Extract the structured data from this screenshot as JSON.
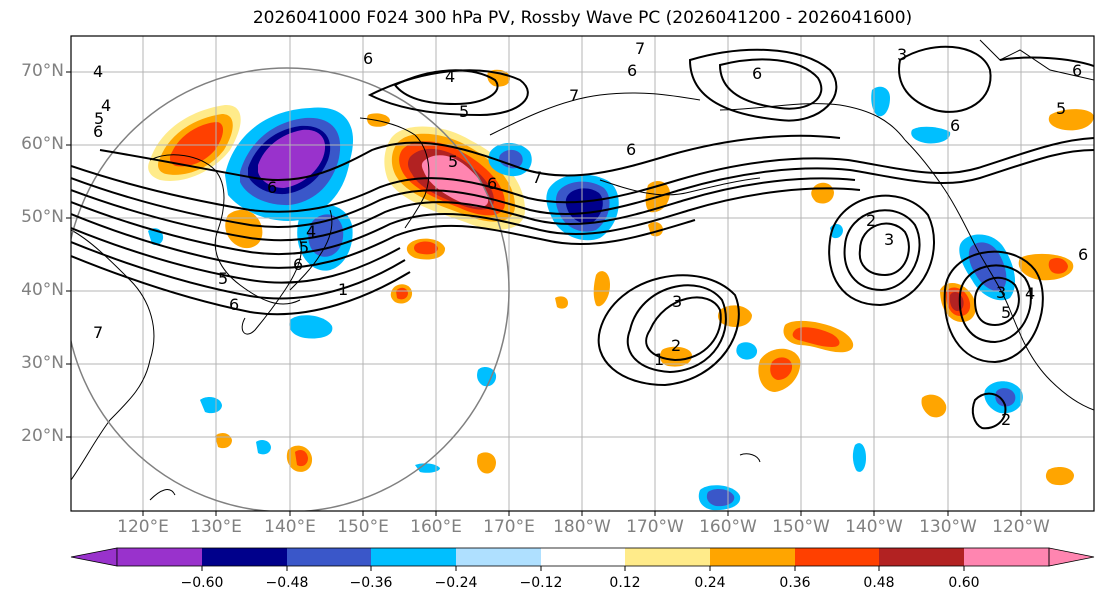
{
  "title": "2026041000 F024 300 hPa PV, Rossby Wave PC (2026041200 - 2026041600)",
  "lat_labels": [
    "70°N",
    "60°N",
    "50°N",
    "40°N",
    "30°N",
    "20°N"
  ],
  "lon_labels": [
    "120°E",
    "130°E",
    "140°E",
    "150°E",
    "160°E",
    "170°E",
    "180°W",
    "170°W",
    "160°W",
    "150°W",
    "140°W",
    "130°W",
    "120°W"
  ],
  "contour_labels": [
    "4",
    "6",
    "7",
    "6",
    "6",
    "4",
    "5",
    "7",
    "6",
    "6",
    "3",
    "6",
    "6",
    "5",
    "5",
    "4",
    "5",
    "6",
    "7",
    "7",
    "6",
    "5",
    "4",
    "3",
    "2",
    "1",
    "3",
    "2",
    "1",
    "6",
    "6",
    "5",
    "4",
    "6",
    "3",
    "5",
    "2"
  ],
  "colorbar": {
    "ticks": [
      "−0.60",
      "−0.48",
      "−0.36",
      "−0.24",
      "−0.12",
      "0.12",
      "0.24",
      "0.36",
      "0.48",
      "0.60"
    ],
    "colors": [
      "#9932cc",
      "#00008b",
      "#3a57c9",
      "#00bfff",
      "#afe0ff",
      "#ffffff",
      "#ffeb8a",
      "#ffa500",
      "#ff4000",
      "#b22222",
      "#ff85b0"
    ]
  }
}
